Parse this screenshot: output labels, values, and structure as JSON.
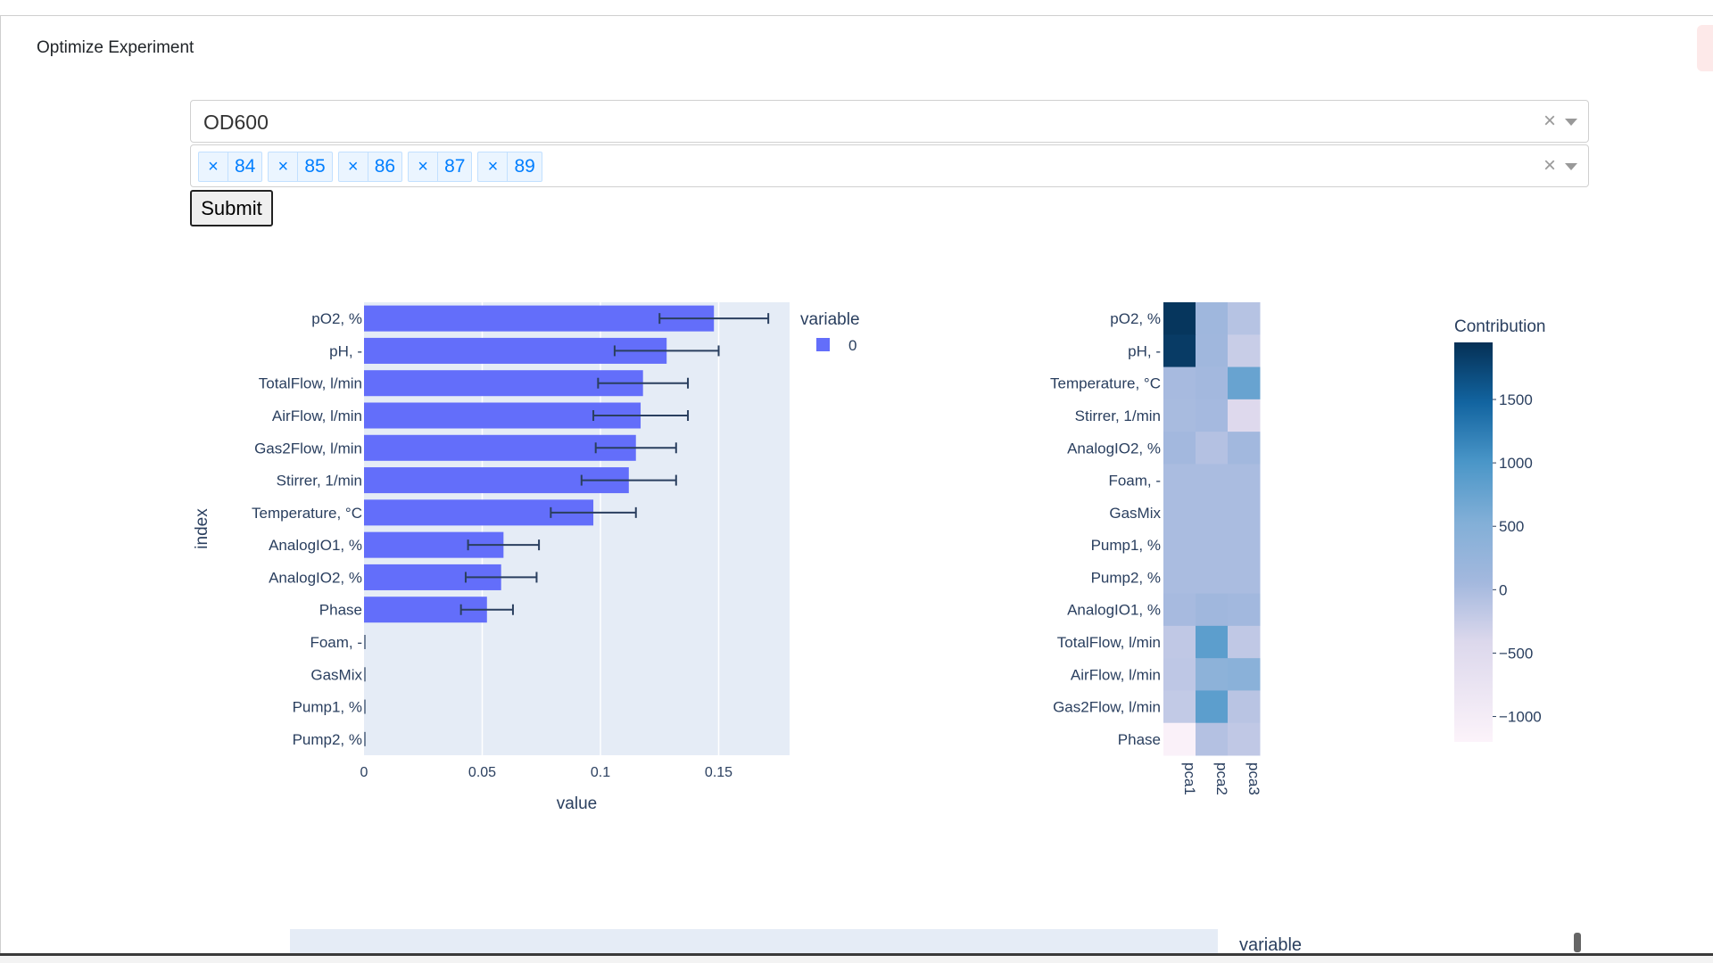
{
  "page": {
    "title": "Optimize Experiment"
  },
  "target_select": {
    "value": "OD600",
    "clear_glyph": "×"
  },
  "experiments_select": {
    "chips": [
      {
        "remove": "×",
        "label": "84"
      },
      {
        "remove": "×",
        "label": "85"
      },
      {
        "remove": "×",
        "label": "86"
      },
      {
        "remove": "×",
        "label": "87"
      },
      {
        "remove": "×",
        "label": "89"
      }
    ],
    "clear_glyph": "×"
  },
  "submit_label": "Submit",
  "colors": {
    "bar": "#636efa",
    "plot_bg": "#e5ecf6",
    "error_bar": "#2a3f5f",
    "text": "#2a3f5f"
  },
  "chart_data": [
    {
      "type": "bar",
      "orientation": "horizontal",
      "xlabel": "value",
      "ylabel": "index",
      "xlim": [
        0,
        0.18
      ],
      "xticks": [
        "0",
        "0.05",
        "0.1",
        "0.15"
      ],
      "legend": {
        "title": "variable",
        "placement": "top-right",
        "entries": [
          {
            "name": "0",
            "color": "#636efa"
          }
        ]
      },
      "categories": [
        "pO2, %",
        "pH, -",
        "TotalFlow, l/min",
        "AirFlow, l/min",
        "Gas2Flow, l/min",
        "Stirrer, 1/min",
        "Temperature, °C",
        "AnalogIO1, %",
        "AnalogIO2, %",
        "Phase",
        "Foam, -",
        "GasMix",
        "Pump1, %",
        "Pump2, %"
      ],
      "series": [
        {
          "name": "0",
          "values": [
            0.148,
            0.128,
            0.118,
            0.117,
            0.115,
            0.112,
            0.097,
            0.059,
            0.058,
            0.052,
            0,
            0,
            0,
            0
          ],
          "error": [
            0.023,
            0.022,
            0.019,
            0.02,
            0.017,
            0.02,
            0.018,
            0.015,
            0.015,
            0.011,
            0,
            0,
            0,
            0
          ]
        }
      ]
    },
    {
      "type": "heatmap",
      "x": [
        "pca1",
        "pca2",
        "pca3"
      ],
      "y": [
        "pO2, %",
        "pH, -",
        "Temperature, °C",
        "Stirrer, 1/min",
        "AnalogIO2, %",
        "Foam, -",
        "GasMix",
        "Pump1, %",
        "Pump2, %",
        "AnalogIO1, %",
        "TotalFlow, l/min",
        "AirFlow, l/min",
        "Gas2Flow, l/min",
        "Phase"
      ],
      "z": [
        [
          1900,
          120,
          -100
        ],
        [
          1850,
          100,
          -250
        ],
        [
          30,
          60,
          750
        ],
        [
          20,
          40,
          -450
        ],
        [
          60,
          -80,
          70
        ],
        [
          0,
          0,
          0
        ],
        [
          0,
          0,
          0
        ],
        [
          0,
          0,
          0
        ],
        [
          0,
          0,
          0
        ],
        [
          30,
          100,
          70
        ],
        [
          -180,
          850,
          -180
        ],
        [
          -160,
          380,
          420
        ],
        [
          -200,
          850,
          -120
        ],
        [
          -1150,
          -80,
          -180
        ]
      ],
      "zlim": [
        -1200,
        1950
      ],
      "colorbar": {
        "title": "Contribution",
        "ticks": [
          "1500",
          "1000",
          "500",
          "0",
          "−500",
          "−1000"
        ],
        "tick_values": [
          1500,
          1000,
          500,
          0,
          -500,
          -1000
        ]
      }
    }
  ],
  "bottom_chart": {
    "legend_title": "variable"
  }
}
